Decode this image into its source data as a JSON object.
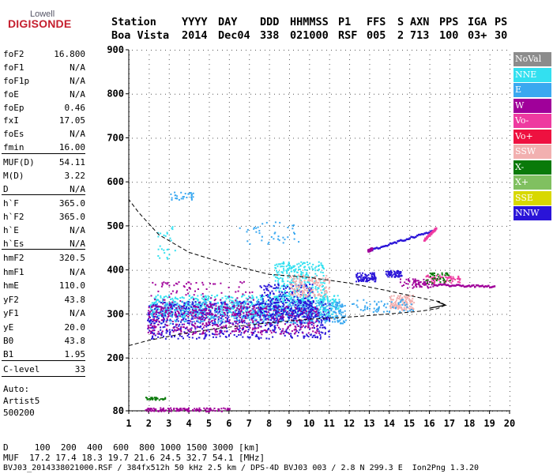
{
  "logo": {
    "top": "Lowell",
    "main": "DIGISONDE"
  },
  "header": {
    "labels": [
      "Station",
      "YYYY",
      "DAY",
      "DDD",
      "HHMMSS",
      "P1",
      "FFS",
      "S",
      "AXN",
      "PPS",
      "IGA",
      "PS"
    ],
    "values": [
      "Boa Vista",
      "2014",
      "Dec04",
      "338",
      "021000",
      "RSF",
      "005",
      "2",
      "713",
      "100",
      "03+",
      "30"
    ]
  },
  "parameters": [
    {
      "name": "foF2",
      "value": "16.800"
    },
    {
      "name": "foF1",
      "value": "N/A"
    },
    {
      "name": "foF1p",
      "value": "N/A"
    },
    {
      "name": "foE",
      "value": "N/A"
    },
    {
      "name": "foEp",
      "value": "0.46"
    },
    {
      "name": "fxI",
      "value": "17.05"
    },
    {
      "name": "foEs",
      "value": "N/A"
    },
    {
      "name": "fmin",
      "value": "16.00"
    },
    {
      "name": "MUF(D)",
      "value": "54.11"
    },
    {
      "name": "M(D)",
      "value": "3.22"
    },
    {
      "name": "D",
      "value": "N/A"
    },
    {
      "name": "h`F",
      "value": "365.0"
    },
    {
      "name": "h`F2",
      "value": "365.0"
    },
    {
      "name": "h`E",
      "value": "N/A"
    },
    {
      "name": "h`Es",
      "value": "N/A"
    },
    {
      "name": "hmF2",
      "value": "320.5"
    },
    {
      "name": "hmF1",
      "value": "N/A"
    },
    {
      "name": "hmE",
      "value": "110.0"
    },
    {
      "name": "yF2",
      "value": "43.8"
    },
    {
      "name": "yF1",
      "value": "N/A"
    },
    {
      "name": "yE",
      "value": "20.0"
    },
    {
      "name": "B0",
      "value": "43.8"
    },
    {
      "name": "B1",
      "value": "1.95"
    },
    {
      "name": "C-level",
      "value": "33"
    }
  ],
  "auto": [
    "Auto:",
    "Artist5",
    "500200"
  ],
  "legend": [
    {
      "label": "NoVal",
      "color": "#8c8c8c"
    },
    {
      "label": "NNE",
      "color": "#33e0f0"
    },
    {
      "label": "E",
      "color": "#3aa8f0"
    },
    {
      "label": "W",
      "color": "#a0009a"
    },
    {
      "label": "Vo-",
      "color": "#ee3aa0"
    },
    {
      "label": "Vo+",
      "color": "#ee1140"
    },
    {
      "label": "SSW",
      "color": "#f2b0b0"
    },
    {
      "label": "X-",
      "color": "#0a7a0a"
    },
    {
      "label": "X+",
      "color": "#80c060"
    },
    {
      "label": "SSE",
      "color": "#d8d800"
    },
    {
      "label": "NNW",
      "color": "#2a14d8"
    }
  ],
  "footer": {
    "d_line": "D     100  200  400  600  800 1000 1500 3000 [km]",
    "muf_line": "MUF  17.2 17.4 18.3 19.7 21.6 24.5 32.7 54.1 [MHz]",
    "file_line": "BVJ03_2014338021000.RSF / 384fx512h 50 kHz 2.5 km / DPS-4D BVJ03 003 / 2.8 N 299.3 E  Ion2Png 1.3.20"
  },
  "chart_data": {
    "type": "scatter",
    "title": "",
    "xlabel": "",
    "ylabel": "",
    "xlim": [
      1,
      20
    ],
    "ylim": [
      80,
      900
    ],
    "xticks": [
      1,
      2,
      3,
      4,
      5,
      6,
      7,
      8,
      9,
      10,
      11,
      12,
      13,
      14,
      15,
      16,
      17,
      18,
      19,
      20
    ],
    "yticks": [
      80,
      200,
      300,
      400,
      500,
      600,
      700,
      800,
      900
    ],
    "clusters": [
      {
        "series": "NNE",
        "x": [
          2.0,
          11.5
        ],
        "y": [
          295,
          345
        ],
        "n": 700
      },
      {
        "series": "E",
        "x": [
          2.0,
          11.8
        ],
        "y": [
          280,
          330
        ],
        "n": 700
      },
      {
        "series": "NNE",
        "x": [
          8.2,
          10.8
        ],
        "y": [
          330,
          420
        ],
        "n": 300
      },
      {
        "series": "NNW",
        "x": [
          1.9,
          11.0
        ],
        "y": [
          245,
          330
        ],
        "n": 650
      },
      {
        "series": "W",
        "x": [
          1.9,
          10.5
        ],
        "y": [
          255,
          320
        ],
        "n": 450
      },
      {
        "series": "NNW",
        "x": [
          7.5,
          10.2
        ],
        "y": [
          290,
          370
        ],
        "n": 250
      },
      {
        "series": "W",
        "x": [
          2.0,
          7.5
        ],
        "y": [
          300,
          375
        ],
        "n": 120
      },
      {
        "series": "SSW",
        "x": [
          9.0,
          11.0
        ],
        "y": [
          340,
          390
        ],
        "n": 140
      },
      {
        "series": "SSW",
        "x": [
          14.0,
          15.2
        ],
        "y": [
          310,
          345
        ],
        "n": 130
      },
      {
        "series": "E",
        "x": [
          12.0,
          15.2
        ],
        "y": [
          305,
          335
        ],
        "n": 60
      },
      {
        "series": "NNW",
        "x": [
          12.3,
          13.3
        ],
        "y": [
          375,
          395
        ],
        "n": 90
      },
      {
        "series": "NNW",
        "x": [
          13.8,
          14.6
        ],
        "y": [
          385,
          400
        ],
        "n": 60
      },
      {
        "series": "W",
        "x": [
          14.5,
          16.3
        ],
        "y": [
          360,
          382
        ],
        "n": 70
      },
      {
        "series": "Vo-",
        "x": [
          15.8,
          17.5
        ],
        "y": [
          370,
          390
        ],
        "n": 70
      },
      {
        "series": "X-",
        "x": [
          15.8,
          17.0
        ],
        "y": [
          370,
          395
        ],
        "n": 40
      },
      {
        "series": "NNE",
        "x": [
          2.2,
          3.3
        ],
        "y": [
          425,
          500
        ],
        "n": 25
      },
      {
        "series": "E",
        "x": [
          3.0,
          4.2
        ],
        "y": [
          560,
          580
        ],
        "n": 30
      },
      {
        "series": "W",
        "x": [
          1.8,
          6.0
        ],
        "y": [
          80,
          88
        ],
        "n": 120
      },
      {
        "series": "X-",
        "x": [
          1.8,
          2.8
        ],
        "y": [
          105,
          112
        ],
        "n": 30
      },
      {
        "series": "E",
        "x": [
          6.5,
          9.5
        ],
        "y": [
          460,
          510
        ],
        "n": 40
      }
    ],
    "traces": [
      {
        "series": "NNW",
        "x": [
          13.1,
          16.1
        ],
        "y": [
          448,
          490
        ]
      },
      {
        "series": "Vo-",
        "x": [
          15.7,
          16.3
        ],
        "y": [
          470,
          496
        ]
      },
      {
        "series": "W",
        "x": [
          16.2,
          19.2
        ],
        "y": [
          368,
          364
        ]
      },
      {
        "series": "W",
        "x": [
          12.9,
          13.1
        ],
        "y": [
          445,
          450
        ]
      }
    ],
    "model_curve": {
      "lower_x": [
        1,
        2,
        4,
        6,
        8,
        10,
        12,
        14,
        15.5,
        16.4,
        16.8
      ],
      "lower_y": [
        228,
        240,
        258,
        270,
        280,
        288,
        293,
        300,
        306,
        312,
        320
      ],
      "upper_x": [
        16.8,
        16.5,
        15.5,
        14.0,
        12.0,
        10.0,
        8.0,
        6.0,
        4.0,
        2.5,
        1.5,
        1.0
      ],
      "upper_y": [
        320,
        328,
        337,
        352,
        370,
        383,
        390,
        412,
        440,
        480,
        530,
        560
      ]
    }
  }
}
